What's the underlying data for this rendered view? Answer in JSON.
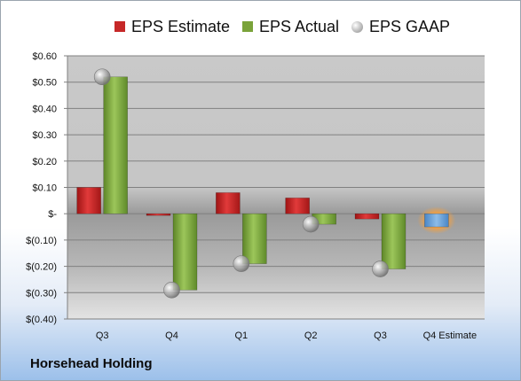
{
  "company": "Horsehead Holding",
  "chart_data": {
    "type": "bar",
    "categories": [
      "Q3",
      "Q4",
      "Q1",
      "Q2",
      "Q3",
      "Q4 Estimate"
    ],
    "series": [
      {
        "name": "EPS Estimate",
        "values": [
          0.1,
          0.0,
          0.08,
          0.06,
          -0.02,
          null
        ],
        "color": "#c62828"
      },
      {
        "name": "EPS Actual",
        "values": [
          0.52,
          -0.29,
          -0.19,
          -0.04,
          -0.21,
          null
        ],
        "color": "#7aa33a"
      },
      {
        "name": "EPS GAAP",
        "values": [
          0.52,
          -0.29,
          -0.19,
          -0.04,
          -0.21,
          null
        ],
        "color": "#a8a8a8"
      }
    ],
    "forecast": {
      "category": "Q4 Estimate",
      "value": -0.05,
      "color": "#5b9bd5"
    },
    "ylim": [
      -0.4,
      0.6
    ],
    "yticks": [
      0.6,
      0.5,
      0.4,
      0.3,
      0.2,
      0.1,
      0.0,
      -0.1,
      -0.2,
      -0.3,
      -0.4
    ],
    "ytick_labels": [
      "$0.60",
      "$0.50",
      "$0.40",
      "$0.30",
      "$0.20",
      "$0.10",
      "$-",
      "$(0.10)",
      "$(0.20)",
      "$(0.30)",
      "$(0.40)"
    ],
    "grid": true,
    "legend_position": "top",
    "title": "",
    "xlabel": "",
    "ylabel": ""
  }
}
